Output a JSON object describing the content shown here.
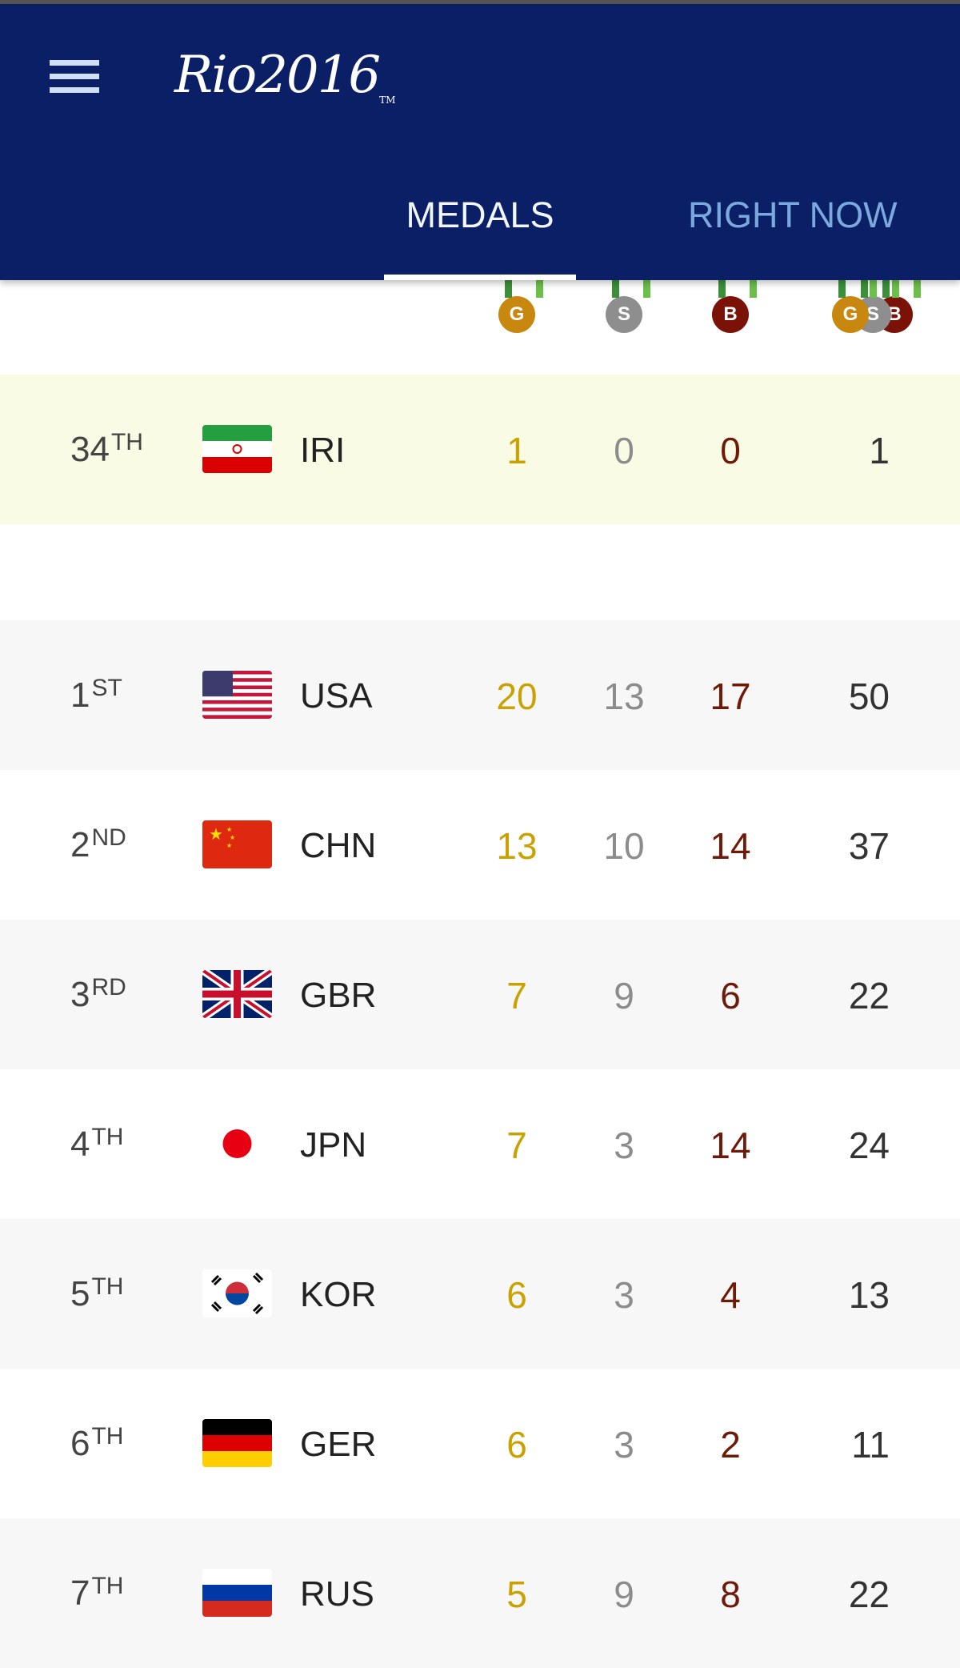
{
  "header": {
    "logo": "Rio2016",
    "logo_tm": "TM",
    "tabs": [
      {
        "label": "MEDALS",
        "active": true
      },
      {
        "label": "RIGHT NOW",
        "active": false
      }
    ]
  },
  "medal_headers": {
    "gold": "G",
    "silver": "S",
    "bronze": "B",
    "total": [
      "G",
      "S",
      "B"
    ]
  },
  "colors": {
    "navy": "#0b1f66",
    "gold": "#c9a100",
    "silver": "#8c8c8c",
    "bronze": "#6e1a08",
    "highlight": "#fafbe4"
  },
  "highlight_row": {
    "rank": "34",
    "suffix": "TH",
    "code": "IRI",
    "gold": "1",
    "silver": "0",
    "bronze": "0",
    "total": "1"
  },
  "rows": [
    {
      "rank": "1",
      "suffix": "ST",
      "code": "USA",
      "gold": "20",
      "silver": "13",
      "bronze": "17",
      "total": "50"
    },
    {
      "rank": "2",
      "suffix": "ND",
      "code": "CHN",
      "gold": "13",
      "silver": "10",
      "bronze": "14",
      "total": "37"
    },
    {
      "rank": "3",
      "suffix": "RD",
      "code": "GBR",
      "gold": "7",
      "silver": "9",
      "bronze": "6",
      "total": "22"
    },
    {
      "rank": "4",
      "suffix": "TH",
      "code": "JPN",
      "gold": "7",
      "silver": "3",
      "bronze": "14",
      "total": "24"
    },
    {
      "rank": "5",
      "suffix": "TH",
      "code": "KOR",
      "gold": "6",
      "silver": "3",
      "bronze": "4",
      "total": "13"
    },
    {
      "rank": "6",
      "suffix": "TH",
      "code": "GER",
      "gold": "6",
      "silver": "3",
      "bronze": "2",
      "total": "11"
    },
    {
      "rank": "7",
      "suffix": "TH",
      "code": "RUS",
      "gold": "5",
      "silver": "9",
      "bronze": "8",
      "total": "22"
    }
  ]
}
